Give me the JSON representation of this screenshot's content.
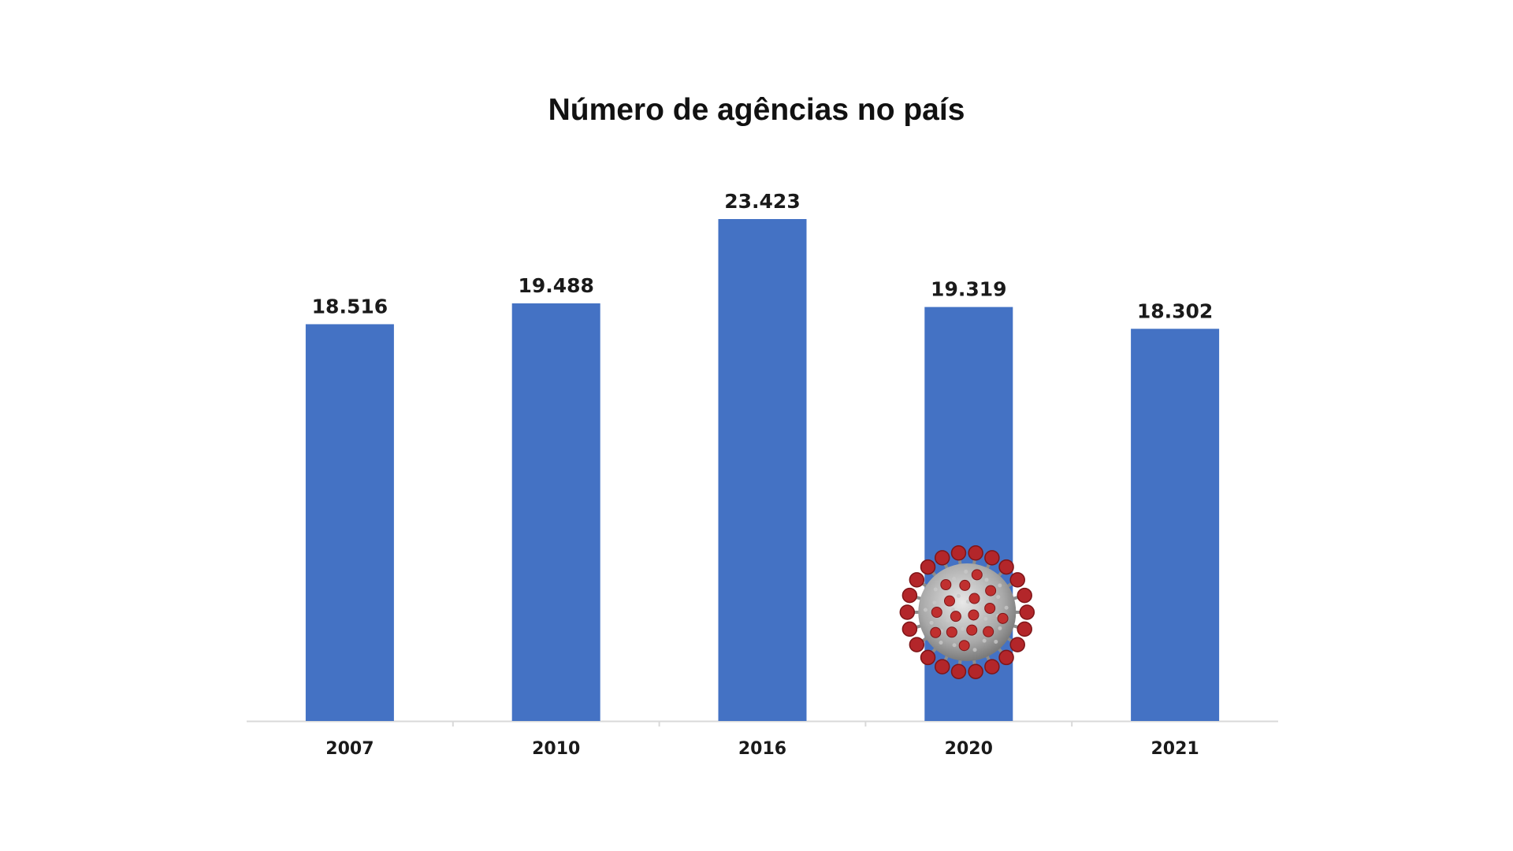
{
  "chart_data": {
    "type": "bar",
    "title": "Número de agências no país",
    "categories": [
      "2007",
      "2010",
      "2016",
      "2020",
      "2021"
    ],
    "values": [
      18516,
      19488,
      23423,
      19319,
      18302
    ],
    "value_labels": [
      "18.516",
      "19.488",
      "23.423",
      "19.319",
      "18.302"
    ],
    "xlabel": "",
    "ylabel": "",
    "ylim": [
      0,
      23423
    ],
    "grid": false,
    "legend": "none",
    "bar_color": "#4472C4",
    "annotation_icon": "coronavirus-icon",
    "annotation_category": "2020"
  }
}
